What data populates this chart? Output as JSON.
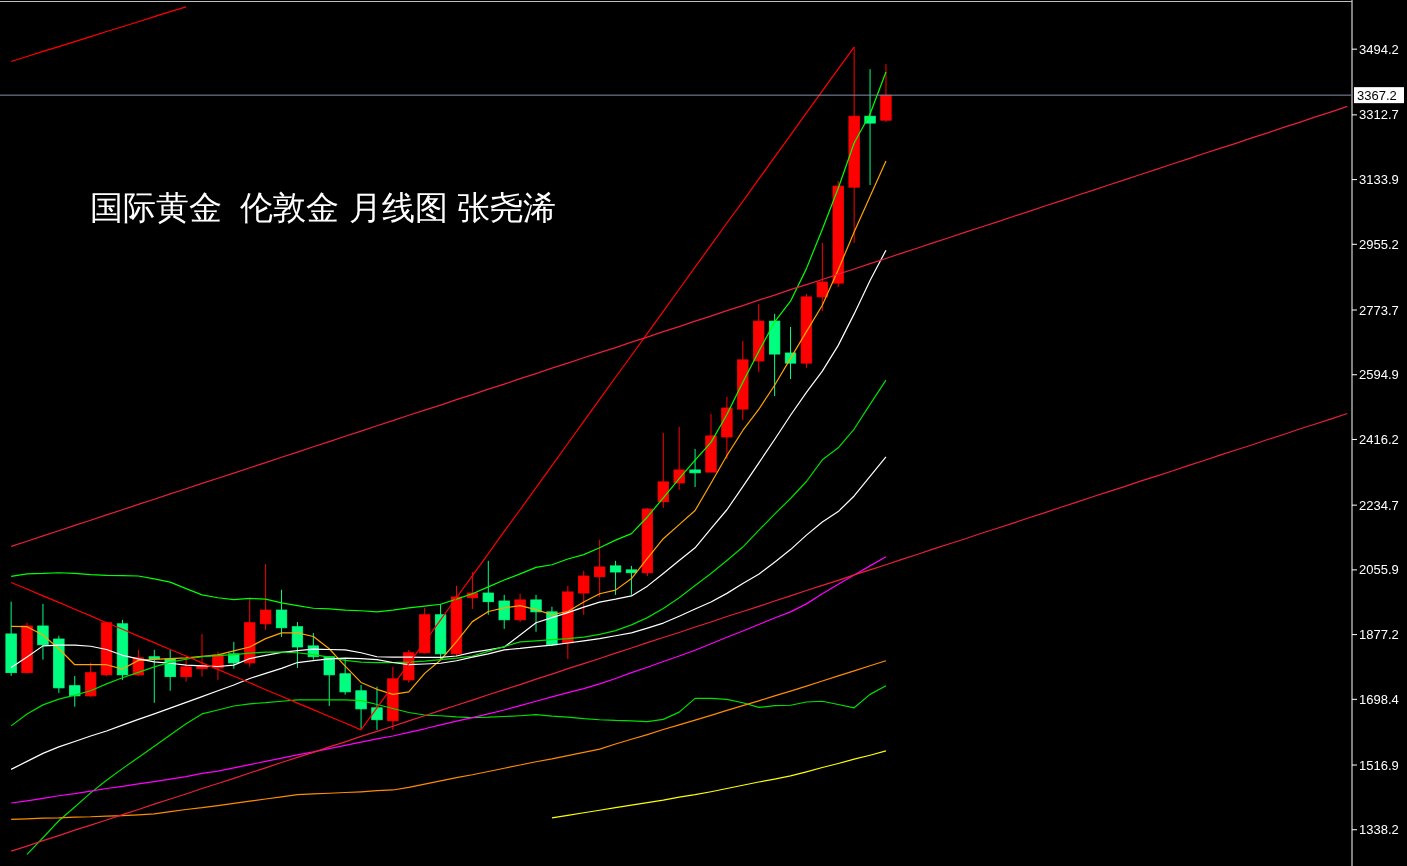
{
  "chart_data": {
    "type": "candlestick",
    "title": "国际黄金  伦敦金 月线图 张尧浠",
    "categories": [
      null,
      null,
      null,
      null,
      null,
      null,
      null,
      null,
      null,
      null,
      null,
      null,
      null,
      null,
      null,
      null,
      null,
      null,
      null,
      null,
      null,
      null,
      null,
      null,
      null,
      null,
      null,
      null,
      null,
      null,
      null,
      null,
      null,
      null,
      null,
      null,
      null,
      null,
      null,
      null,
      null,
      null,
      null,
      null,
      null,
      null,
      null,
      null,
      null,
      null,
      null,
      null,
      null,
      null,
      null,
      null,
      null,
      null,
      null,
      null,
      null,
      null,
      null,
      null,
      null,
      null,
      null,
      null,
      null,
      null,
      null,
      null,
      null,
      null,
      null,
      null,
      null,
      null,
      null,
      null,
      null,
      null,
      null,
      null,
      null
    ],
    "ohlc": [
      [
        1879,
        1968,
        1763,
        1772
      ],
      [
        1772,
        1910,
        1770,
        1901
      ],
      [
        1901,
        1962,
        1808,
        1849
      ],
      [
        1865,
        1874,
        1716,
        1730
      ],
      [
        1736,
        1763,
        1678,
        1708
      ],
      [
        1708,
        1799,
        1705,
        1772
      ],
      [
        1766,
        1912,
        1763,
        1910
      ],
      [
        1907,
        1918,
        1752,
        1766
      ],
      [
        1766,
        1835,
        1763,
        1813
      ],
      [
        1816,
        1835,
        1689,
        1810
      ],
      [
        1810,
        1835,
        1722,
        1761
      ],
      [
        1761,
        1816,
        1747,
        1788
      ],
      [
        1783,
        1879,
        1761,
        1791
      ],
      [
        1785,
        1830,
        1752,
        1821
      ],
      [
        1824,
        1857,
        1783,
        1799
      ],
      [
        1799,
        1976,
        1788,
        1910
      ],
      [
        1907,
        2072,
        1890,
        1945
      ],
      [
        1945,
        2001,
        1871,
        1896
      ],
      [
        1899,
        1912,
        1785,
        1843
      ],
      [
        1846,
        1882,
        1808,
        1816
      ],
      [
        1816,
        1816,
        1680,
        1766
      ],
      [
        1769,
        1813,
        1711,
        1719
      ],
      [
        1722,
        1738,
        1614,
        1672
      ],
      [
        1675,
        1733,
        1614,
        1642
      ],
      [
        1639,
        1788,
        1614,
        1755
      ],
      [
        1752,
        1835,
        1744,
        1827
      ],
      [
        1827,
        1951,
        1825,
        1932
      ],
      [
        1932,
        1962,
        1808,
        1824
      ],
      [
        1824,
        2012,
        1816,
        1981
      ],
      [
        1979,
        2050,
        1948,
        1992
      ],
      [
        1992,
        2081,
        1932,
        1968
      ],
      [
        1970,
        1987,
        1893,
        1918
      ],
      [
        1918,
        1990,
        1912,
        1973
      ],
      [
        1973,
        1987,
        1885,
        1940
      ],
      [
        1940,
        1954,
        1846,
        1849
      ],
      [
        1854,
        2012,
        1810,
        1995
      ],
      [
        1992,
        2053,
        1932,
        2039
      ],
      [
        2037,
        2139,
        1981,
        2064
      ],
      [
        2067,
        2081,
        1987,
        2050
      ],
      [
        2056,
        2067,
        1987,
        2048
      ],
      [
        2048,
        2227,
        2039,
        2224
      ],
      [
        2244,
        2434,
        2227,
        2299
      ],
      [
        2296,
        2451,
        2277,
        2332
      ],
      [
        2332,
        2390,
        2285,
        2324
      ],
      [
        2326,
        2487,
        2326,
        2426
      ],
      [
        2423,
        2534,
        2362,
        2503
      ],
      [
        2500,
        2688,
        2470,
        2636
      ],
      [
        2633,
        2790,
        2603,
        2743
      ],
      [
        2743,
        2763,
        2536,
        2652
      ],
      [
        2655,
        2727,
        2583,
        2627
      ],
      [
        2627,
        2818,
        2614,
        2810
      ],
      [
        2810,
        2959,
        2771,
        2851
      ],
      [
        2848,
        3130,
        2837,
        3116
      ],
      [
        3113,
        3500,
        2959,
        3309
      ],
      [
        3309,
        3439,
        3119,
        3290
      ],
      [
        3298,
        3453,
        3293,
        3367
      ],
      null,
      null,
      null,
      null,
      null,
      null,
      null,
      null,
      null,
      null,
      null,
      null,
      null,
      null,
      null,
      null,
      null,
      null,
      null,
      null,
      null,
      null,
      null,
      null,
      null,
      null,
      null,
      null,
      null
    ],
    "colors": [
      "#00ff80",
      "#ff0000",
      "#00ff80",
      "#00ff80",
      "#00ff80",
      "#ff0000",
      "#ff0000",
      "#00ff80",
      "#ff0000",
      "#00ff80",
      "#00ff80",
      "#ff0000",
      "#ff0000",
      "#ff0000",
      "#00ff80",
      "#ff0000",
      "#ff0000",
      "#00ff80",
      "#00ff80",
      "#00ff80",
      "#00ff80",
      "#00ff80",
      "#00ff80",
      "#00ff80",
      "#ff0000",
      "#ff0000",
      "#ff0000",
      "#00ff80",
      "#ff0000",
      "#ff0000",
      "#00ff80",
      "#00ff80",
      "#ff0000",
      "#00ff80",
      "#00ff80",
      "#ff0000",
      "#ff0000",
      "#ff0000",
      "#00ff80",
      "#00ff80",
      "#ff0000",
      "#ff0000",
      "#ff0000",
      "#00ff80",
      "#ff0000",
      "#ff0000",
      "#ff0000",
      "#ff0000",
      "#00ff80",
      "#00ff80",
      "#ff0000",
      "#ff0000",
      "#ff0000",
      "#ff0000",
      "#00ff80",
      "#ff0000",
      null,
      null,
      null,
      null,
      null,
      null,
      null,
      null,
      null,
      null,
      null,
      null,
      null,
      null,
      null,
      null,
      null,
      null,
      null,
      null,
      null,
      null,
      null,
      null,
      null,
      null,
      null,
      null,
      null
    ],
    "series": [
      {
        "type": "line",
        "color": "#ffa500",
        "values": [
          1900,
          1899,
          1876,
          1838,
          1794,
          1794,
          1794,
          1782,
          1806,
          1809,
          1811,
          1813,
          1817,
          1821,
          1832,
          1843,
          1866,
          1882,
          1882,
          1872,
          1838,
          1790,
          1745,
          1726,
          1712,
          1719,
          1770,
          1807,
          1858,
          1913,
          1941,
          1951,
          1957,
          1946,
          1932,
          1941,
          1967,
          1990,
          2000,
          2032,
          2088,
          2142,
          2181,
          2220,
          2295,
          2372,
          2441,
          2499,
          2566,
          2640,
          2714,
          2787,
          2885,
          2989,
          3087,
          3185,
          null,
          null,
          null,
          null,
          null,
          null,
          null,
          null,
          null,
          null,
          null,
          null,
          null,
          null,
          null,
          null,
          null,
          null,
          null,
          null,
          null,
          null,
          null,
          null,
          null,
          null,
          null,
          null,
          null
        ]
      },
      {
        "type": "line",
        "color": "#00ff00",
        "values": [
          2038,
          2045,
          2046,
          2048,
          2046,
          2043,
          2041,
          2040,
          2039,
          2031,
          2022,
          2004,
          1987,
          1979,
          1974,
          1977,
          1975,
          1965,
          1957,
          1950,
          1948,
          1945,
          1943,
          1940,
          1945,
          1951,
          1956,
          1961,
          1975,
          1990,
          2009,
          2028,
          2045,
          2063,
          2070,
          2086,
          2098,
          2117,
          2138,
          2156,
          2202,
          2255,
          2308,
          2359,
          2408,
          2485,
          2574,
          2659,
          2741,
          2798,
          2888,
          2997,
          3110,
          3235,
          3315,
          3431,
          null,
          null,
          null,
          null,
          null,
          null,
          null,
          null,
          null,
          null,
          null,
          null,
          null,
          null,
          null,
          null,
          null,
          null,
          null,
          null,
          null,
          null,
          null,
          null,
          null,
          null,
          null,
          null,
          null
        ]
      },
      {
        "type": "line",
        "color": "#ffffff",
        "values": [
          1786,
          1815,
          1846,
          1848,
          1848,
          1845,
          1836,
          1820,
          1810,
          1802,
          1798,
          1793,
          1791,
          1789,
          1793,
          1811,
          1820,
          1828,
          1833,
          1837,
          1836,
          1835,
          1827,
          1816,
          1815,
          1815,
          1814,
          1814,
          1818,
          1828,
          1835,
          1843,
          1876,
          1910,
          1924,
          1938,
          1953,
          1967,
          1975,
          1984,
          2011,
          2046,
          2082,
          2117,
          2170,
          2222,
          2286,
          2351,
          2416,
          2483,
          2546,
          2605,
          2676,
          2763,
          2855,
          2939,
          null,
          null,
          null,
          null,
          null,
          null,
          null,
          null,
          null,
          null,
          null,
          null,
          null,
          null,
          null,
          null,
          null,
          null,
          null,
          null,
          null,
          null,
          null,
          null,
          null,
          null,
          null,
          null,
          null
        ]
      },
      {
        "type": "line",
        "color": "#00e000",
        "values": [
          1625,
          1658,
          1683,
          1699,
          1710,
          1722,
          1741,
          1758,
          1773,
          1788,
          1801,
          1809,
          1816,
          1819,
          1822,
          1826,
          1829,
          1829,
          1827,
          1822,
          1815,
          1806,
          1801,
          1800,
          1800,
          1801,
          1804,
          1808,
          1812,
          1818,
          1831,
          1844,
          1857,
          1860,
          1863,
          1866,
          1870,
          1878,
          1888,
          1904,
          1924,
          1949,
          1979,
          2013,
          2046,
          2082,
          2119,
          2165,
          2210,
          2253,
          2300,
          2360,
          2393,
          2445,
          2513,
          2580,
          null,
          null,
          null,
          null,
          null,
          null,
          null,
          null,
          null,
          null,
          null,
          null,
          null,
          null,
          null,
          null,
          null,
          null,
          null,
          null,
          null,
          null,
          null,
          null,
          null,
          null,
          null,
          null,
          null
        ]
      },
      {
        "type": "line",
        "color": "#ffffff",
        "values": [
          1505,
          1527,
          1549,
          1567,
          1582,
          1597,
          1611,
          1627,
          1643,
          1658,
          1674,
          1690,
          1706,
          1722,
          1738,
          1756,
          1770,
          1784,
          1800,
          1805,
          1810,
          1812,
          1811,
          1808,
          1800,
          1794,
          1796,
          1798,
          1805,
          1815,
          1824,
          1835,
          1839,
          1844,
          1848,
          1854,
          1860,
          1866,
          1874,
          1882,
          1895,
          1909,
          1928,
          1948,
          1967,
          1991,
          2018,
          2044,
          2077,
          2112,
          2152,
          2188,
          2217,
          2260,
          2314,
          2368,
          null,
          null,
          null,
          null,
          null,
          null,
          null,
          null,
          null,
          null,
          null,
          null,
          null,
          null,
          null,
          null,
          null,
          null,
          null,
          null,
          null,
          null,
          null,
          null,
          null,
          null,
          null,
          null,
          null
        ]
      },
      {
        "type": "line",
        "color": "#00e000",
        "values": [
          null,
          1270,
          1316,
          1363,
          1401,
          1440,
          1475,
          1507,
          1538,
          1569,
          1600,
          1631,
          1658,
          1669,
          1680,
          1686,
          1689,
          1693,
          1697,
          1697,
          1697,
          1697,
          1695,
          1684,
          1673,
          1662,
          1655,
          1653,
          1650,
          1648,
          1649,
          1651,
          1653,
          1656,
          1652,
          1649,
          1645,
          1642,
          1640,
          1639,
          1637,
          1643,
          1663,
          1701,
          1701,
          1698,
          1689,
          1676,
          1681,
          1682,
          1691,
          1693,
          1684,
          1675,
          1712,
          1736,
          null,
          null,
          null,
          null,
          null,
          null,
          null,
          null,
          null,
          null,
          null,
          null,
          null,
          null,
          null,
          null,
          null,
          null,
          null,
          null,
          null,
          null,
          null,
          null,
          null,
          null,
          null,
          null,
          null
        ]
      },
      {
        "type": "line",
        "color": "#ff00ff",
        "values": [
          1412,
          1418,
          1425,
          1432,
          1438,
          1445,
          1452,
          1458,
          1465,
          1471,
          1478,
          1485,
          1494,
          1500,
          1509,
          1518,
          1527,
          1536,
          1545,
          1553,
          1562,
          1571,
          1580,
          1589,
          1597,
          1607,
          1617,
          1628,
          1638,
          1648,
          1658,
          1669,
          1681,
          1693,
          1705,
          1717,
          1728,
          1741,
          1756,
          1772,
          1787,
          1803,
          1818,
          1834,
          1852,
          1870,
          1887,
          1905,
          1923,
          1940,
          1962,
          1990,
          2016,
          2042,
          2067,
          2092,
          null,
          null,
          null,
          null,
          null,
          null,
          null,
          null,
          null,
          null,
          null,
          null,
          null,
          null,
          null,
          null,
          null,
          null,
          null,
          null,
          null,
          null,
          null,
          null,
          null,
          null,
          null,
          null,
          null
        ]
      },
      {
        "type": "line",
        "color": "#ff8c00",
        "values": [
          1367,
          1368,
          1370,
          1371,
          1373,
          1374,
          1376,
          1377,
          1379,
          1382,
          1388,
          1394,
          1399,
          1405,
          1411,
          1417,
          1423,
          1429,
          1435,
          1437,
          1439,
          1441,
          1443,
          1446,
          1448,
          1455,
          1464,
          1473,
          1482,
          1490,
          1499,
          1508,
          1517,
          1526,
          1534,
          1543,
          1552,
          1561,
          1575,
          1588,
          1601,
          1615,
          1628,
          1641,
          1654,
          1668,
          1681,
          1694,
          1708,
          1721,
          1735,
          1749,
          1763,
          1777,
          1791,
          1805,
          null,
          null,
          null,
          null,
          null,
          null,
          null,
          null,
          null,
          null,
          null,
          null,
          null,
          null,
          null,
          null,
          null,
          null,
          null,
          null,
          null,
          null,
          null,
          null,
          null,
          null,
          null,
          null,
          null
        ]
      },
      {
        "type": "line",
        "color": "#ffff00",
        "values": [
          null,
          null,
          null,
          null,
          null,
          null,
          null,
          null,
          null,
          null,
          null,
          null,
          null,
          null,
          null,
          null,
          null,
          null,
          null,
          null,
          null,
          null,
          null,
          null,
          null,
          null,
          null,
          null,
          null,
          null,
          null,
          null,
          null,
          null,
          1371,
          1378,
          1385,
          1392,
          1399,
          1406,
          1413,
          1420,
          1428,
          1435,
          1443,
          1452,
          1461,
          1470,
          1478,
          1487,
          1498,
          1510,
          1521,
          1533,
          1544,
          1556,
          null,
          null,
          null,
          null,
          null,
          null,
          null,
          null,
          null,
          null,
          null,
          null,
          null,
          null,
          null,
          null,
          null,
          null,
          null,
          null,
          null,
          null,
          null,
          null,
          null,
          null,
          null,
          null,
          null
        ]
      },
      {
        "type": "line",
        "color": "#ff0000",
        "values": [
          3460,
          3474,
          3488,
          3501,
          3515,
          3529,
          3543,
          3556,
          3570,
          3584,
          3598,
          3611,
          null,
          null,
          null,
          null,
          null,
          null,
          null,
          null,
          null,
          null,
          null,
          null,
          null,
          null,
          null,
          null,
          null,
          null,
          null,
          null,
          null,
          null,
          null,
          null,
          null,
          null,
          null,
          null,
          null,
          null,
          null,
          null,
          null,
          null,
          null,
          null,
          null,
          null,
          null,
          null,
          null,
          null,
          null,
          null,
          null,
          null,
          null,
          null,
          null,
          null,
          null,
          null,
          null,
          null,
          null,
          null,
          null,
          null,
          null,
          null,
          null,
          null,
          null,
          null,
          null,
          null,
          null,
          null,
          null,
          null,
          null,
          null,
          null
        ]
      },
      {
        "type": "line",
        "color": "#ff0000",
        "values": [
          2021,
          2003,
          1984,
          1966,
          1947,
          1929,
          1910,
          1892,
          1873,
          1855,
          1836,
          1818,
          1799,
          1781,
          1762,
          1744,
          1725,
          1707,
          1688,
          1670,
          1651,
          1633,
          1614,
          1675,
          1736,
          1797,
          1857,
          1918,
          1979,
          2040,
          2101,
          2162,
          2222,
          2283,
          2344,
          2405,
          2466,
          2527,
          2588,
          2648,
          2709,
          2770,
          2831,
          2892,
          2953,
          3014,
          3074,
          3135,
          3196,
          3257,
          3318,
          3379,
          3440,
          3500,
          null,
          null,
          null,
          null,
          null,
          null,
          null,
          null,
          null,
          null,
          null,
          null,
          null,
          null,
          null,
          null,
          null,
          null,
          null,
          null,
          null,
          null,
          null,
          null,
          null,
          null,
          null,
          null,
          null,
          null,
          null
        ]
      },
      {
        "type": "line",
        "color": "#e8203c",
        "values": [
          2121,
          2135,
          2150,
          2164,
          2179,
          2193,
          2208,
          2222,
          2237,
          2251,
          2266,
          2280,
          2295,
          2309,
          2323,
          2338,
          2352,
          2367,
          2381,
          2396,
          2410,
          2425,
          2439,
          2454,
          2468,
          2483,
          2497,
          2511,
          2526,
          2540,
          2555,
          2569,
          2584,
          2598,
          2613,
          2627,
          2642,
          2656,
          2670,
          2685,
          2699,
          2714,
          2728,
          2743,
          2757,
          2772,
          2786,
          2801,
          2815,
          2830,
          2844,
          2858,
          2873,
          2887,
          2902,
          2916,
          2931,
          2945,
          2960,
          2974,
          2989,
          3003,
          3017,
          3032,
          3046,
          3061,
          3075,
          3090,
          3104,
          3119,
          3133,
          3148,
          3162,
          3177,
          3191,
          3206,
          3220,
          3234,
          3249,
          3263,
          3278,
          3292,
          3307,
          3321,
          3336
        ]
      },
      {
        "type": "line",
        "color": "#e8203c",
        "values": [
          1279,
          1293,
          1308,
          1322,
          1337,
          1351,
          1365,
          1380,
          1394,
          1409,
          1423,
          1437,
          1452,
          1466,
          1480,
          1495,
          1509,
          1524,
          1538,
          1552,
          1567,
          1581,
          1596,
          1610,
          1624,
          1639,
          1653,
          1668,
          1682,
          1696,
          1711,
          1725,
          1739,
          1754,
          1768,
          1783,
          1797,
          1811,
          1826,
          1840,
          1855,
          1869,
          1883,
          1898,
          1912,
          1927,
          1941,
          1955,
          1970,
          1984,
          1999,
          2013,
          2027,
          2042,
          2056,
          2070,
          2085,
          2099,
          2114,
          2128,
          2142,
          2157,
          2171,
          2185,
          2200,
          2214,
          2229,
          2243,
          2258,
          2272,
          2286,
          2301,
          2315,
          2329,
          2344,
          2358,
          2373,
          2387,
          2401,
          2416,
          2430,
          2445,
          2459,
          2473,
          2488
        ]
      }
    ],
    "ylim": [
      1238,
      3630
    ],
    "yticks": [
      {
        "value": 3494.2,
        "label": "3494.2"
      },
      {
        "value": 3312.7,
        "label": "3312.7"
      },
      {
        "value": 3133.9,
        "label": "3133.9"
      },
      {
        "value": 2955.2,
        "label": "2955.2"
      },
      {
        "value": 2773.7,
        "label": "2773.7"
      },
      {
        "value": 2594.9,
        "label": "2594.9"
      },
      {
        "value": 2416.2,
        "label": "2416.2"
      },
      {
        "value": 2234.7,
        "label": "2234.7"
      },
      {
        "value": 2055.9,
        "label": "2055.9"
      },
      {
        "value": 1877.2,
        "label": "1877.2"
      },
      {
        "value": 1698.4,
        "label": "1698.4"
      },
      {
        "value": 1516.9,
        "label": "1516.9"
      },
      {
        "value": 1338.2,
        "label": "1338.2"
      }
    ],
    "tick_labels": "y",
    "ref_lines": [
      {
        "axis": "y",
        "value": 3367.2,
        "label": "3367.2",
        "color": "#8090a8"
      }
    ]
  }
}
